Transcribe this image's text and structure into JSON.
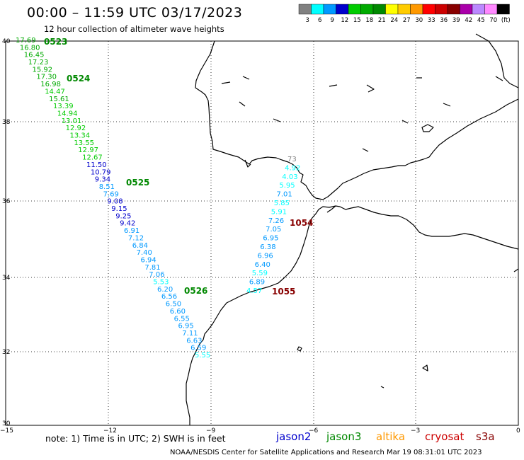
{
  "header": {
    "title": "00:00 – 11:59 UTC 03/17/2023",
    "subtitle": "12 hour collection of altimeter wave heights"
  },
  "legend": {
    "colors": [
      "#808080",
      "#00ffff",
      "#0099ff",
      "#0000cc",
      "#00cc00",
      "#00aa00",
      "#008800",
      "#ffff00",
      "#ffcc00",
      "#ff9900",
      "#ff0000",
      "#cc0000",
      "#880000",
      "#aa00aa",
      "#bb88ff",
      "#ff88ff",
      "#000000"
    ],
    "labels": [
      "3",
      "6",
      "9",
      "12",
      "15",
      "18",
      "21",
      "24",
      "27",
      "30",
      "33",
      "36",
      "39",
      "42",
      "45",
      "70",
      "(ft)"
    ]
  },
  "axes": {
    "x_ticks": [
      "−15",
      "−12",
      "−9",
      "−6",
      "−3",
      "0"
    ],
    "y_ticks": [
      "40",
      "38",
      "36",
      "34",
      "32",
      "30"
    ]
  },
  "track_labels": [
    {
      "text": "0523",
      "color": "#008800"
    },
    {
      "text": "0524",
      "color": "#008800"
    },
    {
      "text": "0525",
      "color": "#008800"
    },
    {
      "text": "0526",
      "color": "#008800"
    },
    {
      "text": "1054",
      "color": "#880000"
    },
    {
      "text": "1055",
      "color": "#880000"
    }
  ],
  "track_a": {
    "satellite": "jason3",
    "values": [
      "17.69",
      "16.80",
      "16.45",
      "17.23",
      "15.92",
      "17.30",
      "16.98",
      "14.47",
      "15.61",
      "13.39",
      "14.94",
      "13.01",
      "12.92",
      "13.34",
      "13.55",
      "12.97",
      "12.67",
      "11.50",
      "10.79",
      "9.34",
      "8.51",
      "7.69",
      "9.08",
      "9.15",
      "9.25",
      "9.42",
      "6.91",
      "7.12",
      "6.84",
      "7.40",
      "6.94",
      "7.81",
      "7.06",
      "5.53",
      "6.20",
      "6.56",
      "6.50",
      "6.60",
      "6.55",
      "6.95",
      "7.11",
      "6.63",
      "6.59",
      "5.55"
    ]
  },
  "track_b": {
    "satellite": "cryosat",
    "values": [
      "73",
      "4.92",
      "4.03",
      "5.95",
      "7.01",
      "5.85",
      "5.91",
      "7.26",
      "7.05",
      "6.95",
      "6.38",
      "6.96",
      "6.40",
      "5.59",
      "6.89",
      "4.57"
    ]
  },
  "note": "note: 1) Time is in UTC; 2) SWH is in feet",
  "satellites": [
    {
      "name": "jason2",
      "color": "#0000cc"
    },
    {
      "name": "jason3",
      "color": "#008800"
    },
    {
      "name": "altika",
      "color": "#ff9900"
    },
    {
      "name": "cryosat",
      "color": "#cc0000"
    },
    {
      "name": "s3a",
      "color": "#880000"
    }
  ],
  "footer": "NOAA/NESDIS Center for Satellite Applications and Research   Mar 19 08:31:01 UTC 2023"
}
